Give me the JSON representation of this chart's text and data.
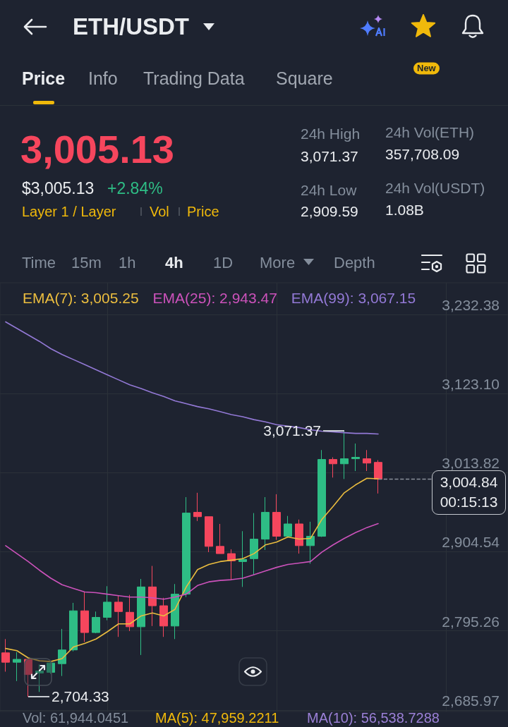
{
  "chart_data": {
    "type": "candlestick",
    "title": "ETH/USDT",
    "categories": [
      null,
      null,
      null,
      null,
      null,
      null,
      null,
      null,
      null,
      null,
      null,
      null,
      null,
      null,
      null,
      null,
      null,
      null,
      null,
      null,
      null,
      null,
      null,
      null,
      null,
      null,
      null,
      null,
      null,
      null,
      null,
      null,
      null,
      null
    ],
    "ohlc": [
      [
        2765,
        2784,
        2739,
        2752
      ],
      [
        2752,
        2766,
        2726,
        2756
      ],
      [
        2756,
        2757,
        2704.33,
        2735
      ],
      [
        2737,
        2749,
        2711,
        2740
      ],
      [
        2738,
        2753,
        2736,
        2751
      ],
      [
        2750,
        2798,
        2733,
        2769
      ],
      [
        2769,
        2834,
        2767,
        2823
      ],
      [
        2823,
        2849,
        2780,
        2793
      ],
      [
        2793,
        2822,
        2792,
        2814
      ],
      [
        2814,
        2857,
        2810,
        2835
      ],
      [
        2835,
        2844,
        2787,
        2822
      ],
      [
        2821,
        2845,
        2795,
        2801
      ],
      [
        2801,
        2867,
        2762,
        2856
      ],
      [
        2856,
        2885,
        2802,
        2830
      ],
      [
        2830,
        2841,
        2787,
        2802
      ],
      [
        2802,
        2860,
        2784,
        2846
      ],
      [
        2846,
        2980,
        2842,
        2958
      ],
      [
        2959,
        2986,
        2947,
        2953
      ],
      [
        2953,
        2953,
        2904,
        2912
      ],
      [
        2912,
        2943,
        2902,
        2902
      ],
      [
        2902,
        2908,
        2866,
        2892
      ],
      [
        2891,
        2933,
        2856,
        2894
      ],
      [
        2895,
        2958,
        2873,
        2922
      ],
      [
        2922,
        2980,
        2907,
        2959
      ],
      [
        2959,
        2984,
        2921,
        2926
      ],
      [
        2926,
        2954,
        2924,
        2943
      ],
      [
        2943,
        2949,
        2902,
        2913
      ],
      [
        2913,
        2946,
        2888,
        2926
      ],
      [
        2926,
        3045,
        2925,
        3032
      ],
      [
        3032,
        3035,
        3007,
        3026
      ],
      [
        3026,
        3071.37,
        3005,
        3033
      ],
      [
        3033,
        3054,
        3016,
        3035
      ],
      [
        3033,
        3045,
        3016,
        3027
      ],
      [
        3028,
        3031,
        2985,
        3004.84
      ]
    ],
    "colors": [
      "#f6465d",
      "#2ebd85",
      "#f6465d",
      "#2ebd85",
      "#2ebd85",
      "#2ebd85",
      "#2ebd85",
      "#f6465d",
      "#2ebd85",
      "#2ebd85",
      "#f6465d",
      "#f6465d",
      "#2ebd85",
      "#f6465d",
      "#f6465d",
      "#2ebd85",
      "#2ebd85",
      "#f6465d",
      "#f6465d",
      "#f6465d",
      "#f6465d",
      "#2ebd85",
      "#2ebd85",
      "#2ebd85",
      "#f6465d",
      "#2ebd85",
      "#f6465d",
      "#2ebd85",
      "#2ebd85",
      "#f6465d",
      "#2ebd85",
      "#2ebd85",
      "#f6465d",
      "#f6465d"
    ],
    "series": [
      {
        "name": "EMA(7): 3,005.25",
        "type": "line",
        "color": "#ebbd3f",
        "values": [
          2771,
          2768,
          2758,
          2754,
          2753,
          2757,
          2773,
          2778,
          2784,
          2794,
          2805,
          2805,
          2816,
          2820,
          2816,
          2825,
          2856,
          2880,
          2887,
          2891,
          2893,
          2895,
          2902,
          2914,
          2918,
          2925,
          2922,
          2923,
          2949,
          2967,
          2986,
          2997,
          3006,
          3005.25
        ]
      },
      {
        "name": "EMA(25): 2,943.47",
        "type": "line",
        "color": "#cc52bb",
        "values": [
          2913,
          2902,
          2891,
          2879,
          2868,
          2859,
          2854,
          2849,
          2848,
          2846,
          2844,
          2842,
          2842,
          2841,
          2839,
          2842,
          2846,
          2858,
          2863,
          2865,
          2866,
          2868,
          2873,
          2878,
          2883,
          2887,
          2889,
          2891,
          2904,
          2914,
          2923,
          2931,
          2938,
          2943.47
        ]
      },
      {
        "name": "EMA(99): 3,067.15",
        "type": "line",
        "color": "#9379d6",
        "values": [
          3222,
          3213,
          3204,
          3195,
          3185,
          3177,
          3170,
          3163,
          3156,
          3149,
          3142,
          3135,
          3130,
          3124,
          3119,
          3113,
          3109,
          3105,
          3102,
          3098,
          3094,
          3091,
          3087,
          3084,
          3080,
          3078,
          3076,
          3073,
          3071,
          3070,
          3069,
          3068,
          3068,
          3067.15
        ]
      }
    ],
    "ylim": [
      2684,
      3276
    ],
    "yticks": [
      {
        "value": 2685.97,
        "label": "2,685.97"
      },
      {
        "value": 2795.26,
        "label": "2,795.26"
      },
      {
        "value": 2904.54,
        "label": "2,904.54"
      },
      {
        "value": 3013.82,
        "label": "3,013.82"
      },
      {
        "value": 3123.1,
        "label": "3,123.10"
      },
      {
        "value": 3232.38,
        "label": "3,232.38"
      }
    ],
    "tick_labels": "y",
    "grid": true,
    "marker": "none",
    "ref_lines": [
      {
        "axis": "y",
        "value": 3004.84,
        "label": "3,004.84",
        "line_style": "dashed",
        "color": "#8a909a"
      }
    ],
    "annotations": [
      "Price",
      "Info",
      "Trading Data",
      "Square",
      "New",
      "3,005.13",
      "$3,005.13",
      "+2.84%",
      "Layer 1 / Layer",
      "Vol",
      "Price",
      "24h High",
      "3,071.37",
      "24h Low",
      "2,909.59",
      "24h Vol(ETH)",
      "357,708.09",
      "24h Vol(USDT)",
      "1.08B",
      "Time",
      "15m",
      "1h",
      "4h",
      "1D",
      "More",
      "Depth",
      "00:15:13",
      "3,071.37",
      "2,704.33",
      "Vol: 61,944.0451",
      "MA(5): 47,959.2211",
      "MA(10): 56,538.7288"
    ]
  }
}
